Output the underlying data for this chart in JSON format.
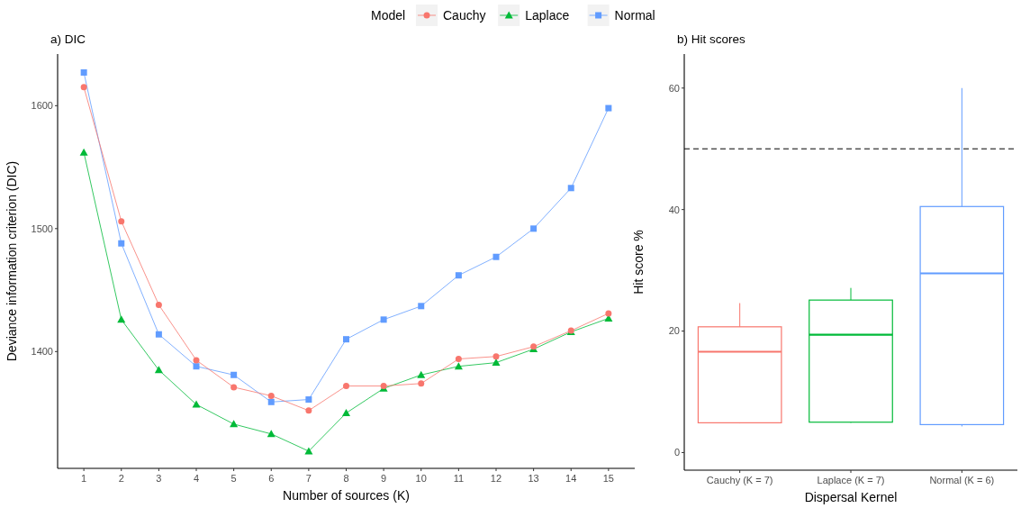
{
  "chart_data": [
    {
      "type": "line",
      "title": "a) DIC",
      "xlabel": "Number of sources (K)",
      "ylabel": "Deviance information criterion (DIC)",
      "legend_title": "Model",
      "legend": "top",
      "grid": false,
      "line_style": "solid",
      "x": [
        1,
        2,
        3,
        4,
        5,
        6,
        7,
        8,
        9,
        10,
        11,
        12,
        13,
        14,
        15
      ],
      "xlim": [
        0.3,
        15.7
      ],
      "xticks": [
        1,
        2,
        3,
        4,
        5,
        6,
        7,
        8,
        9,
        10,
        11,
        12,
        13,
        14,
        15
      ],
      "ylim": [
        1305,
        1642
      ],
      "yticks": [
        1400,
        1500,
        1600
      ],
      "series": [
        {
          "name": "Cauchy",
          "color": "#f8766d",
          "marker": "circle",
          "values": [
            1615,
            1506,
            1438,
            1393,
            1371,
            1364,
            1352,
            1372,
            1372,
            1374,
            1394,
            1396,
            1404,
            1417,
            1431
          ]
        },
        {
          "name": "Laplace",
          "color": "#00ba38",
          "marker": "triangle",
          "values": [
            1562,
            1426,
            1385,
            1357,
            1341,
            1333,
            1319,
            1350,
            1370,
            1381,
            1388,
            1391,
            1402,
            1416,
            1427
          ]
        },
        {
          "name": "Normal",
          "color": "#619cff",
          "marker": "square",
          "values": [
            1627,
            1488,
            1414,
            1388,
            1381,
            1359,
            1361,
            1410,
            1426,
            1437,
            1462,
            1477,
            1500,
            1533,
            1598
          ]
        }
      ]
    },
    {
      "type": "box",
      "title": "b) Hit scores",
      "xlabel": "Dispersal Kernel",
      "ylabel": "Hit score %",
      "grid": false,
      "categories": [
        "Cauchy (K = 7)",
        "Laplace (K = 7)",
        "Normal (K = 6)"
      ],
      "colors": [
        "#f8766d",
        "#00ba38",
        "#619cff"
      ],
      "ylim": [
        -2.9,
        65.6
      ],
      "yticks": [
        0,
        20,
        40,
        60
      ],
      "boxes": [
        {
          "low": 4.8,
          "q1": 4.9,
          "median": 16.6,
          "q3": 20.7,
          "high": 24.6
        },
        {
          "low": 4.9,
          "q1": 5.0,
          "median": 19.4,
          "q3": 25.1,
          "high": 27.1
        },
        {
          "low": 4.3,
          "q1": 4.6,
          "median": 29.5,
          "q3": 40.5,
          "high": 60
        }
      ],
      "ref_lines": [
        {
          "axis": "y",
          "value": 50,
          "color": "#000000",
          "line_style": "dashed"
        }
      ]
    }
  ]
}
